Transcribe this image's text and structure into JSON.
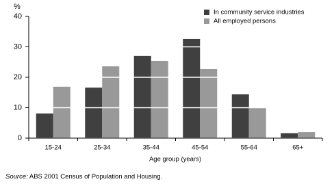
{
  "chart_data": {
    "type": "bar",
    "y_unit": "%",
    "x_label": "Age group (years)",
    "categories": [
      "15-24",
      "25-34",
      "35-44",
      "45-54",
      "55-64",
      "65+"
    ],
    "series": [
      {
        "name": "In community service industries",
        "color": "#404040",
        "values": [
          8.1,
          16.6,
          27,
          32.6,
          14.4,
          1.6
        ]
      },
      {
        "name": "All employed persons",
        "color": "#999999",
        "values": [
          16.9,
          23.6,
          25.4,
          22.7,
          9.9,
          2.0
        ]
      }
    ],
    "ylim": [
      0,
      40
    ],
    "yticks": [
      0,
      10,
      20,
      30,
      40
    ],
    "grid": true,
    "grid_color": "#ffffff",
    "legend": "top-right",
    "source_label": "Source:",
    "source_text": "ABS 2001 Census of Population and Housing."
  }
}
